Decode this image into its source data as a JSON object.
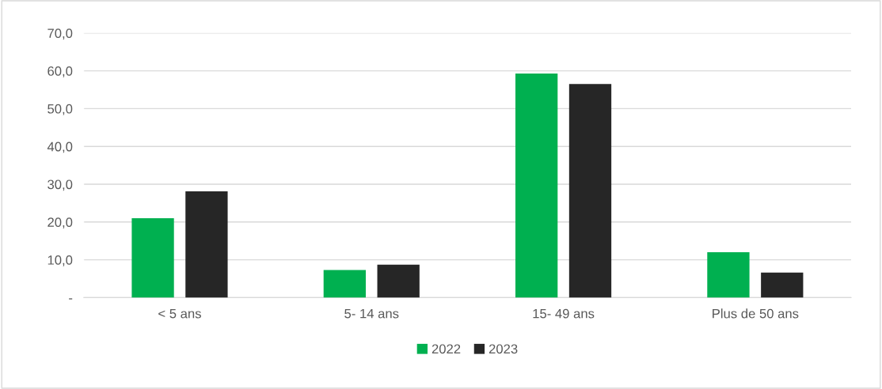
{
  "chart_data": {
    "type": "bar",
    "categories": [
      "< 5 ans",
      "5- 14 ans",
      "15- 49 ans",
      "Plus de 50 ans"
    ],
    "series": [
      {
        "name": "2022",
        "color": "#00b050",
        "values": [
          21.0,
          7.3,
          59.3,
          12.0
        ]
      },
      {
        "name": "2023",
        "color": "#262626",
        "values": [
          28.1,
          8.7,
          56.5,
          6.6
        ]
      }
    ],
    "ylim": [
      0,
      70
    ],
    "yticks": [
      {
        "value": 0,
        "label": "-"
      },
      {
        "value": 10,
        "label": "10,0"
      },
      {
        "value": 20,
        "label": "20,0"
      },
      {
        "value": 30,
        "label": "30,0"
      },
      {
        "value": 40,
        "label": "40,0"
      },
      {
        "value": 50,
        "label": "50,0"
      },
      {
        "value": 60,
        "label": "60,0"
      },
      {
        "value": 70,
        "label": "70,0"
      }
    ],
    "grid": "y",
    "legend": "bottom"
  }
}
